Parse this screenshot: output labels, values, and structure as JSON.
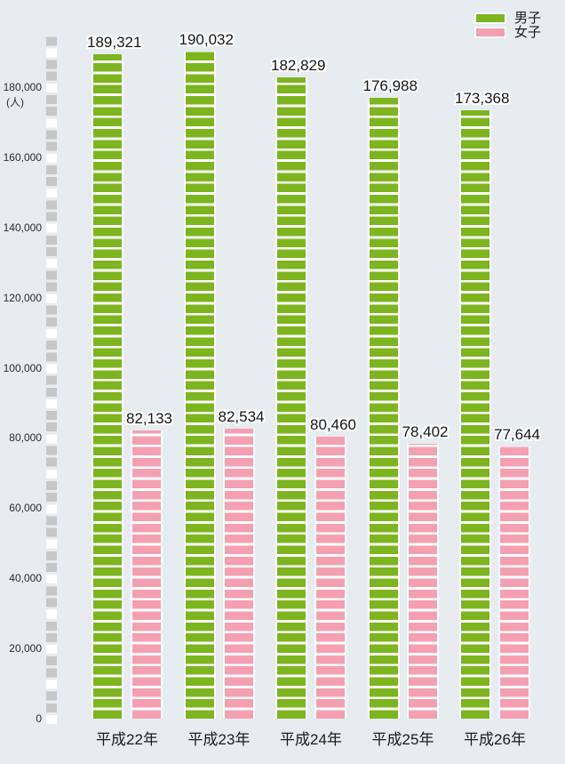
{
  "chart_data": {
    "type": "bar",
    "title": "",
    "categories": [
      "平成22年",
      "平成23年",
      "平成24年",
      "平成25年",
      "平成26年"
    ],
    "series": [
      {
        "name": "男子",
        "values": [
          189321,
          190032,
          182829,
          176988,
          173368
        ]
      },
      {
        "name": "女子",
        "values": [
          82133,
          82534,
          80460,
          78402,
          77644
        ]
      }
    ],
    "value_labels": [
      [
        "189,321",
        "190,032",
        "182,829",
        "176,988",
        "173,368"
      ],
      [
        "82,133",
        "82,534",
        "80,460",
        "78,402",
        "77,644"
      ]
    ],
    "y_axis": {
      "unit": "(人)",
      "ticks": [
        0,
        20000,
        40000,
        60000,
        80000,
        100000,
        120000,
        140000,
        160000,
        180000
      ],
      "tick_labels": [
        "0",
        "20,000",
        "40,000",
        "60,000",
        "80,000",
        "100,000",
        "120,000",
        "140,000",
        "160,000",
        "180,000"
      ]
    },
    "ylim": [
      0,
      196000
    ],
    "grid": false,
    "legend": {
      "position": "top-right",
      "entries": [
        {
          "label": "男子",
          "color": "#7cb51e"
        },
        {
          "label": "女子",
          "color": "#f4a0b1"
        }
      ]
    }
  },
  "colors": {
    "background": "#e6ecef",
    "male": "#7cb51e",
    "female": "#f4a0b1",
    "axis_square_gray": "#c6c7c7",
    "axis_square_white": "#ffffff",
    "stripe_gap": "#ffffff",
    "text": "#1c1c1c"
  }
}
